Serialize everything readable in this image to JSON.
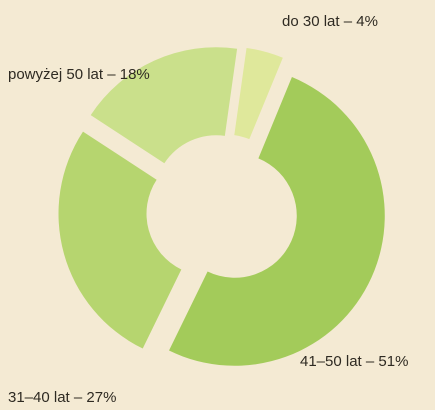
{
  "chart_data": {
    "type": "donut",
    "values": [
      4,
      51,
      27,
      18
    ],
    "value_labels": [
      "do 30 lat – 4%",
      "41–50 lat – 51%",
      "31–40 lat – 27%",
      "powyżej 50 lat – 18%"
    ],
    "colors": [
      "#dfe89b",
      "#a3cb5a",
      "#b6d56f",
      "#cae08b"
    ]
  }
}
